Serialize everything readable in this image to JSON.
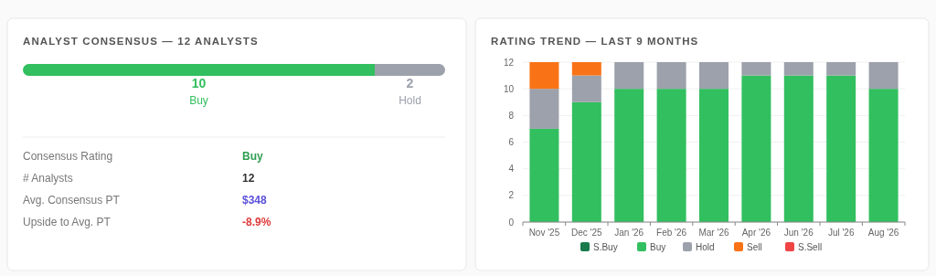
{
  "chart_data": [
    {
      "type": "bar",
      "title": "ANALYST CONSENSUS — 12 ANALYSTS",
      "orientation": "horizontal",
      "stacked": true,
      "categories": [
        null
      ],
      "tick_labels": false,
      "data_labels": true,
      "legend": "bottom",
      "series": [
        {
          "name": "Buy",
          "color": "#32bf5f",
          "values": [
            10
          ]
        },
        {
          "name": "Hold",
          "color": "#9ca1ab",
          "values": [
            2
          ]
        }
      ],
      "annotations": [
        "Consensus Rating",
        "Buy",
        "# Analysts",
        "12",
        "Avg. Consensus PT",
        "$348",
        "Upside to Avg. PT",
        "-8.9%"
      ]
    },
    {
      "type": "bar",
      "title": "RATING TREND — LAST 9 MONTHS",
      "stacked": true,
      "categories": [
        "Nov '25",
        "Dec '25",
        "Jan '26",
        "Feb '26",
        "Mar '26",
        "Apr '26",
        "Jun '26",
        "Jul '26",
        "Aug '26"
      ],
      "ylim": [
        0,
        12
      ],
      "yticks": [
        0,
        2,
        4,
        6,
        8,
        10,
        12
      ],
      "grid": "y",
      "legend": "bottom",
      "series": [
        {
          "name": "S.Buy",
          "color": "#1a7a4c",
          "values": [
            0,
            0,
            0,
            0,
            0,
            0,
            0,
            0,
            0
          ]
        },
        {
          "name": "Buy",
          "color": "#32bf5f",
          "values": [
            7,
            9,
            10,
            10,
            10,
            11,
            11,
            11,
            10
          ]
        },
        {
          "name": "Hold",
          "color": "#9ca1ab",
          "values": [
            3,
            2,
            2,
            2,
            2,
            1,
            1,
            1,
            2
          ]
        },
        {
          "name": "Sell",
          "color": "#f97316",
          "values": [
            2,
            1,
            0,
            0,
            0,
            0,
            0,
            0,
            0
          ]
        },
        {
          "name": "S.Sell",
          "color": "#ef4444",
          "values": [
            0,
            0,
            0,
            0,
            0,
            0,
            0,
            0,
            0
          ]
        }
      ]
    }
  ]
}
